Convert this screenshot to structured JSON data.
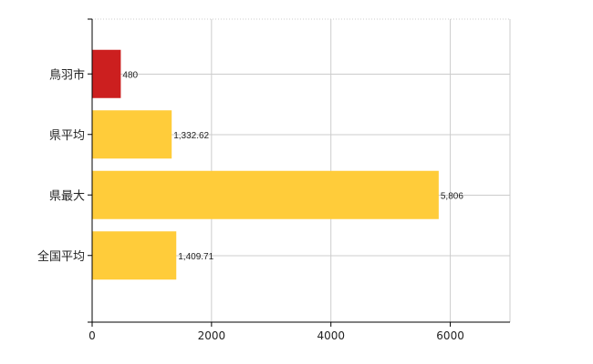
{
  "chart_data": {
    "type": "bar",
    "orientation": "horizontal",
    "categories": [
      "鳥羽市",
      "県平均",
      "県最大",
      "全国平均"
    ],
    "values": [
      480,
      1332.62,
      5806,
      1409.71
    ],
    "data_labels": [
      "480",
      "1,332.62",
      "5,806",
      "1,409.71"
    ],
    "bar_colors": [
      "#cc1f1f",
      "#ffcc3a",
      "#ffcc3a",
      "#ffcc3a"
    ],
    "xlim": [
      0,
      7000
    ],
    "xticks": [
      0,
      2000,
      4000,
      6000
    ],
    "xtick_labels": [
      "0",
      "2000",
      "4000",
      "6000"
    ],
    "grid": true,
    "grid_color": "#cccccc",
    "title": "",
    "xlabel": "",
    "ylabel": ""
  }
}
